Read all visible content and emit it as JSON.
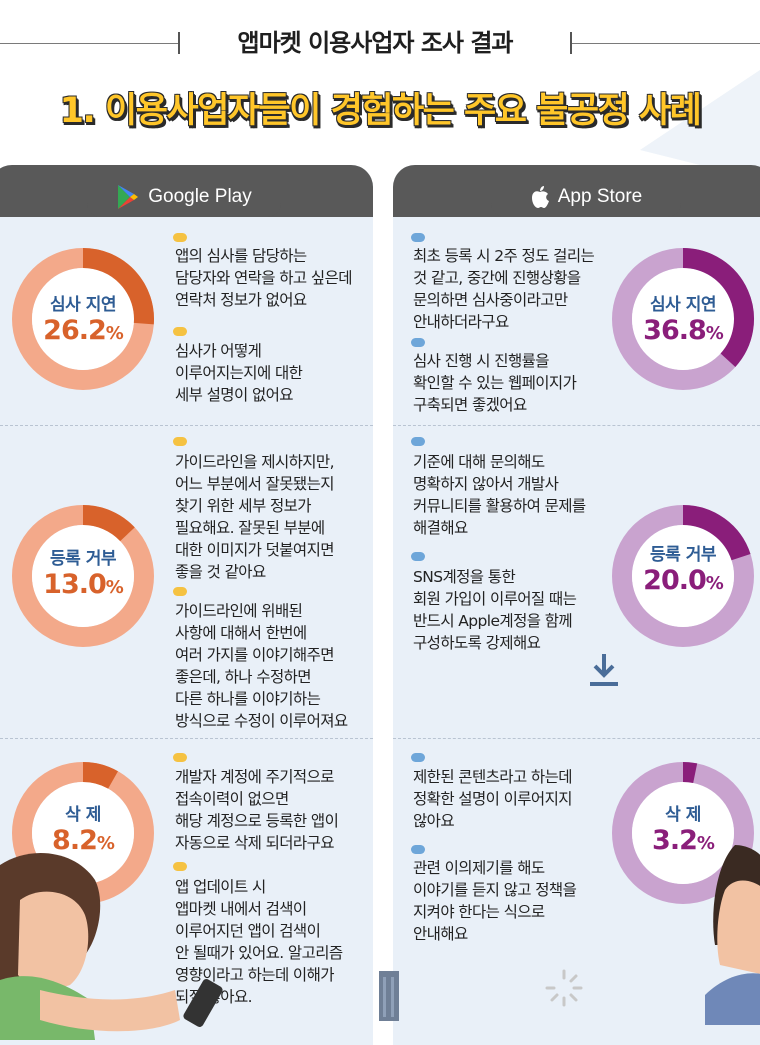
{
  "header": {
    "subtitle": "앱마켓 이용사업자 조사 결과",
    "title": "1. 이용사업자들이 경험하는 주요 불공정 사례"
  },
  "stores": {
    "left": {
      "name": "Google Play",
      "icon": "google-play-icon"
    },
    "right": {
      "name": "App Store",
      "icon": "apple-icon"
    }
  },
  "colors": {
    "left_accent": "#d8622b",
    "left_ring": "#f3a98a",
    "right_accent": "#8a1e7a",
    "right_ring": "#c9a3cf",
    "label_blue": "#2e5c94",
    "panel_bg": "#e9f0f8",
    "header_bg": "#595959"
  },
  "rows": [
    {
      "category": "심사 지연",
      "left": {
        "value": "26.2",
        "unit": "%",
        "fraction": 0.262,
        "quotes": [
          "앱의 심사를 담당하는\n담당자와 연락을 하고 싶은데\n연락처 정보가 없어요",
          "심사가 어떻게\n이루어지는지에 대한\n세부 설명이 없어요"
        ]
      },
      "right": {
        "value": "36.8",
        "unit": "%",
        "fraction": 0.368,
        "quotes": [
          "최초 등록 시 2주 정도 걸리는\n것 같고, 중간에 진행상황을\n문의하면 심사중이라고만\n안내하더라구요",
          "심사 진행 시 진행률을\n확인할 수 있는 웹페이지가\n구축되면 좋겠어요"
        ]
      }
    },
    {
      "category": "등록 거부",
      "left": {
        "value": "13.0",
        "unit": "%",
        "fraction": 0.13,
        "quotes": [
          "가이드라인을 제시하지만,\n어느 부분에서 잘못됐는지\n찾기 위한 세부 정보가\n필요해요. 잘못된 부분에\n대한 이미지가 덧붙여지면\n좋을 것 같아요",
          "가이드라인에 위배된\n사항에 대해서 한번에\n여러 가지를 이야기해주면\n좋은데, 하나 수정하면\n다른 하나를 이야기하는\n방식으로 수정이 이루어져요"
        ]
      },
      "right": {
        "value": "20.0",
        "unit": "%",
        "fraction": 0.2,
        "quotes": [
          "기준에 대해 문의해도\n명확하지 않아서 개발사\n커뮤니티를 활용하여 문제를\n해결해요",
          "SNS계정을 통한\n회원 가입이 이루어질 때는\n반드시 Apple계정을 함께\n구성하도록 강제해요"
        ]
      }
    },
    {
      "category": "삭 제",
      "left": {
        "value": "8.2",
        "unit": "%",
        "fraction": 0.082,
        "quotes": [
          "개발자 계정에 주기적으로\n접속이력이 없으면\n해당 계정으로 등록한 앱이\n자동으로 삭제 되더라구요",
          "앱 업데이트 시\n앱마켓 내에서 검색이\n이루어지던 앱이 검색이\n안 될때가 있어요. 알고리즘\n영향이라고 하는데 이해가\n되질 않아요."
        ]
      },
      "right": {
        "value": "3.2",
        "unit": "%",
        "fraction": 0.032,
        "quotes": [
          "제한된 콘텐츠라고 하는데\n정확한 설명이 이루어지지\n않아요",
          "관련 이의제기를 해도\n이야기를 듣지 않고 정책을\n지켜야 한다는 식으로\n안내해요"
        ]
      }
    }
  ]
}
